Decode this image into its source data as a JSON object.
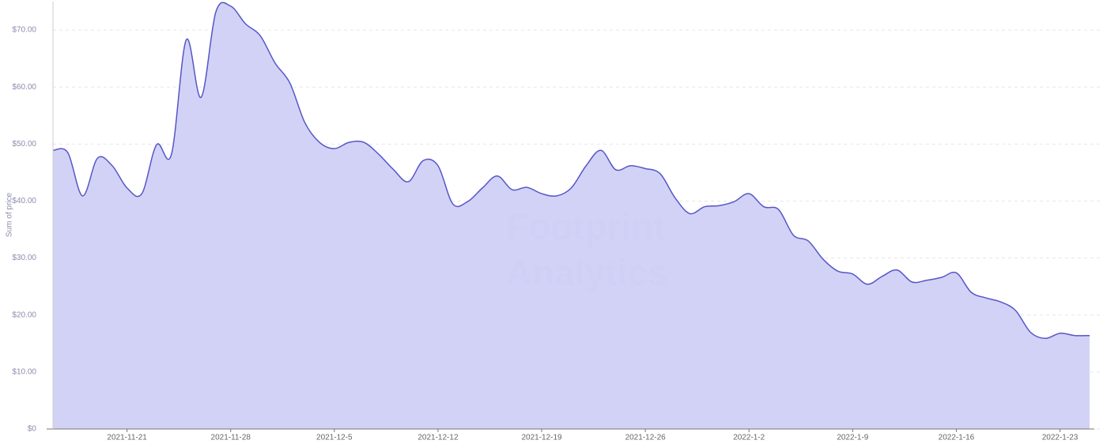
{
  "chart_data": {
    "type": "area",
    "y_label": "Sum of price",
    "watermark": [
      "Footprint",
      "Analytics"
    ],
    "color": "#5656c8",
    "fill": "#d0d0f5",
    "x": [
      "2021-11-16",
      "2021-11-17",
      "2021-11-18",
      "2021-11-19",
      "2021-11-20",
      "2021-11-21",
      "2021-11-22",
      "2021-11-23",
      "2021-11-24",
      "2021-11-25",
      "2021-11-26",
      "2021-11-27",
      "2021-11-28",
      "2021-11-29",
      "2021-11-30",
      "2021-12-1",
      "2021-12-2",
      "2021-12-3",
      "2021-12-4",
      "2021-12-5",
      "2021-12-6",
      "2021-12-7",
      "2021-12-8",
      "2021-12-9",
      "2021-12-10",
      "2021-12-11",
      "2021-12-12",
      "2021-12-13",
      "2021-12-14",
      "2021-12-15",
      "2021-12-16",
      "2021-12-17",
      "2021-12-18",
      "2021-12-19",
      "2021-12-20",
      "2021-12-21",
      "2021-12-22",
      "2021-12-23",
      "2021-12-24",
      "2021-12-25",
      "2021-12-26",
      "2021-12-27",
      "2021-12-28",
      "2021-12-29",
      "2021-12-30",
      "2021-12-31",
      "2022-1-1",
      "2022-1-2",
      "2022-1-3",
      "2022-1-4",
      "2022-1-5",
      "2022-1-6",
      "2022-1-7",
      "2022-1-8",
      "2022-1-9",
      "2022-1-10",
      "2022-1-11",
      "2022-1-12",
      "2022-1-13",
      "2022-1-14",
      "2022-1-15",
      "2022-1-16",
      "2022-1-17",
      "2022-1-18",
      "2022-1-19",
      "2022-1-20",
      "2022-1-21",
      "2022-1-22",
      "2022-1-23",
      "2022-1-24",
      "2022-1-25"
    ],
    "values": [
      48.9,
      48.5,
      40.9,
      47.5,
      46.2,
      42.3,
      41.3,
      49.9,
      48.2,
      68.3,
      58.2,
      73.2,
      74.2,
      71.1,
      69,
      64.2,
      60.7,
      53.8,
      50.3,
      49.2,
      50.3,
      50.3,
      48.2,
      45.5,
      43.4,
      47.1,
      46.2,
      39.5,
      39.9,
      42.3,
      44.4,
      42,
      42.4,
      41.3,
      40.9,
      42.3,
      46.2,
      48.9,
      45.5,
      46.2,
      45.7,
      44.8,
      40.6,
      37.8,
      39,
      39.2,
      39.9,
      41.3,
      39,
      38.5,
      34,
      33,
      29.8,
      27.7,
      27.2,
      25.4,
      26.8,
      27.9,
      25.8,
      26.1,
      26.6,
      27.4,
      24,
      23,
      22.3,
      20.8,
      17,
      15.9,
      16.8,
      16.4,
      16.4
    ],
    "xticks": [
      "2021-11-21",
      "2021-11-28",
      "2021-12-5",
      "2021-12-12",
      "2021-12-19",
      "2021-12-26",
      "2022-1-2",
      "2022-1-9",
      "2022-1-16",
      "2022-1-23"
    ],
    "ylim": [
      0,
      75
    ],
    "yticks": [
      {
        "value": 0,
        "label": "$0"
      },
      {
        "value": 10,
        "label": "$10.00"
      },
      {
        "value": 20,
        "label": "$20.00"
      },
      {
        "value": 30,
        "label": "$30.00"
      },
      {
        "value": 40,
        "label": "$40.00"
      },
      {
        "value": 50,
        "label": "$50.00"
      },
      {
        "value": 60,
        "label": "$60.00"
      },
      {
        "value": 70,
        "label": "$70.00"
      }
    ],
    "grid": true
  }
}
